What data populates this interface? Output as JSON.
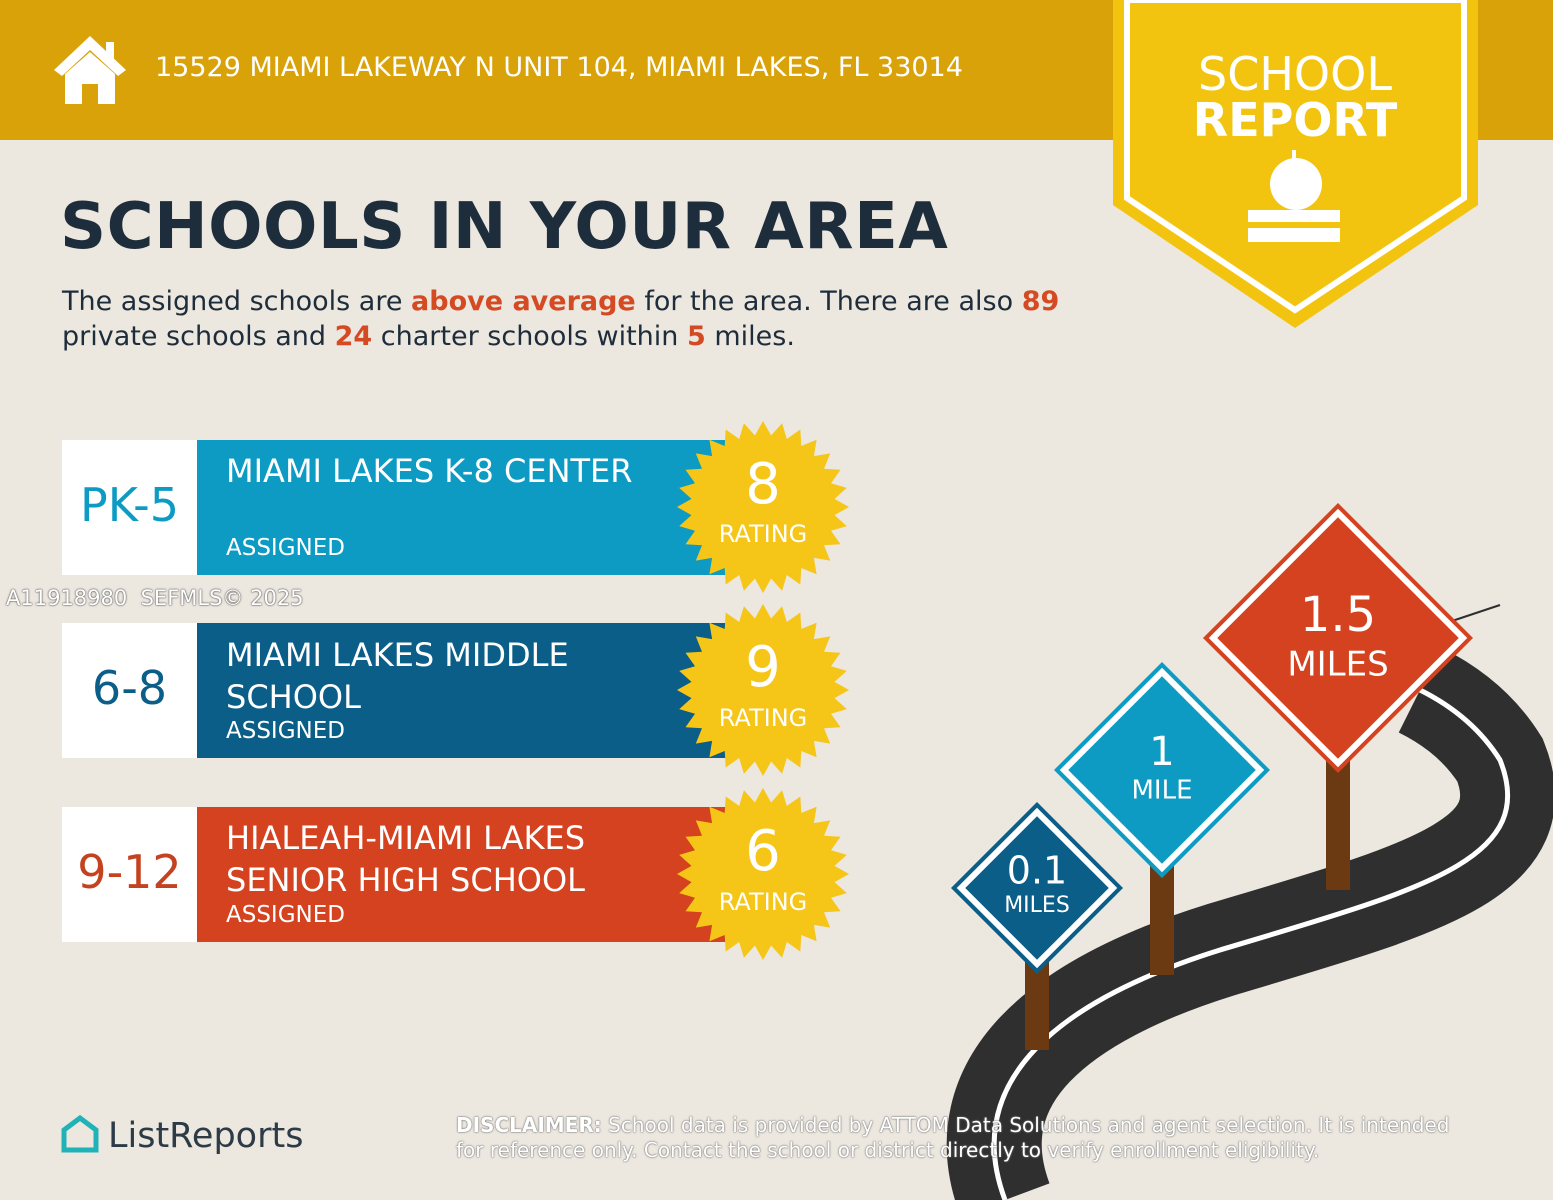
{
  "header": {
    "address": "15529 MIAMI LAKEWAY N UNIT 104, MIAMI LAKES, FL 33014"
  },
  "badge": {
    "line1": "SCHOOL",
    "line2": "REPORT"
  },
  "title": "SCHOOLS IN YOUR AREA",
  "summary": {
    "parts": [
      "The assigned schools are ",
      "above average",
      " for the area. There are also ",
      89,
      " private schools and ",
      24,
      " charter schools within ",
      5,
      " miles."
    ]
  },
  "schools": [
    {
      "grades": "PK-5",
      "name": "MIAMI LAKES K-8 CENTER",
      "status": "ASSIGNED",
      "rating": 8,
      "rating_label": "RATING"
    },
    {
      "grades": "6-8",
      "name": "MIAMI LAKES MIDDLE SCHOOL",
      "status": "ASSIGNED",
      "rating": 9,
      "rating_label": "RATING"
    },
    {
      "grades": "9-12",
      "name": "HIALEAH-MIAMI LAKES SENIOR HIGH SCHOOL",
      "status": "ASSIGNED",
      "rating": 6,
      "rating_label": "RATING"
    }
  ],
  "signs": [
    {
      "distance": 0.1,
      "unit": "MILES"
    },
    {
      "distance": 1,
      "unit": "MILE"
    },
    {
      "distance": 1.5,
      "unit": "MILES"
    }
  ],
  "watermark": "A11918980  SEFMLS© 2025",
  "logo": "ListReports",
  "disclaimer": {
    "label": "DISCLAIMER:",
    "text": "School data is provided by ATTOM Data Solutions and agent selection. It is intended for reference only. Contact the school or district directly to verify enrollment eligibility."
  }
}
